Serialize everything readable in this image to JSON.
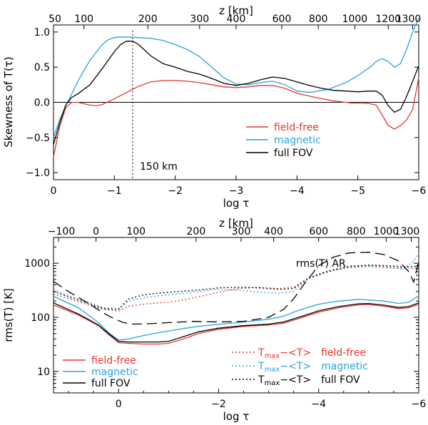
{
  "chart_data": [
    {
      "type": "line",
      "title": "",
      "xlabel": "log τ",
      "ylabel": "Skewness of T(τ)",
      "top_axis_label": "z [km]",
      "xlim": [
        0,
        -6
      ],
      "ylim": [
        -1.1,
        1.1
      ],
      "x_ticks": [
        "0",
        "−1",
        "−2",
        "−3",
        "−4",
        "−5",
        "−6"
      ],
      "x_tick_values": [
        0,
        -1,
        -2,
        -3,
        -4,
        -5,
        -6
      ],
      "y_ticks": [
        "−1.0",
        "−0.5",
        "0.0",
        "0.5",
        "1.0"
      ],
      "y_tick_values": [
        -1.0,
        -0.5,
        0.0,
        0.5,
        1.0
      ],
      "top_ticks": [
        "50",
        "100",
        "200",
        "300",
        "400",
        "600",
        "800",
        "1000",
        "1200",
        "1300"
      ],
      "top_tick_logtau": [
        0,
        -0.5,
        -1.55,
        -2.4,
        -3.0,
        -3.75,
        -4.35,
        -4.95,
        -5.5,
        -5.9
      ],
      "zero_line": 0,
      "vline": {
        "x": -1.3,
        "label": "150 km",
        "style": "dotted"
      },
      "series": [
        {
          "name": "field-free",
          "color": "#e8342e",
          "x": [
            0,
            -0.1,
            -0.2,
            -0.3,
            -0.4,
            -0.5,
            -0.6,
            -0.7,
            -0.8,
            -1.0,
            -1.2,
            -1.4,
            -1.6,
            -1.8,
            -2.0,
            -2.2,
            -2.4,
            -2.6,
            -2.8,
            -3.0,
            -3.2,
            -3.4,
            -3.6,
            -3.8,
            -4.0,
            -4.3,
            -4.6,
            -4.9,
            -5.1,
            -5.2,
            -5.3,
            -5.4,
            -5.5,
            -5.6,
            -5.7,
            -5.8,
            -5.9,
            -6.0
          ],
          "y": [
            -0.78,
            -0.35,
            -0.08,
            0.0,
            0.0,
            -0.02,
            -0.04,
            -0.05,
            -0.03,
            0.05,
            0.14,
            0.23,
            0.29,
            0.31,
            0.31,
            0.3,
            0.28,
            0.25,
            0.22,
            0.21,
            0.22,
            0.24,
            0.24,
            0.2,
            0.13,
            0.07,
            0.02,
            -0.01,
            -0.01,
            -0.02,
            -0.04,
            -0.18,
            -0.33,
            -0.38,
            -0.33,
            -0.25,
            -0.1,
            0.35
          ]
        },
        {
          "name": "magnetic",
          "color": "#2aa3de",
          "x": [
            0,
            -0.1,
            -0.2,
            -0.3,
            -0.4,
            -0.6,
            -0.8,
            -0.9,
            -1.0,
            -1.1,
            -1.2,
            -1.4,
            -1.6,
            -1.8,
            -2.0,
            -2.2,
            -2.4,
            -2.6,
            -2.8,
            -3.0,
            -3.2,
            -3.4,
            -3.6,
            -3.8,
            -4.0,
            -4.2,
            -4.5,
            -4.8,
            -5.0,
            -5.2,
            -5.3,
            -5.4,
            -5.5,
            -5.6,
            -5.7,
            -5.8,
            -5.9,
            -6.0
          ],
          "y": [
            -0.5,
            -0.25,
            -0.05,
            0.12,
            0.3,
            0.6,
            0.82,
            0.89,
            0.92,
            0.93,
            0.93,
            0.92,
            0.91,
            0.88,
            0.82,
            0.75,
            0.65,
            0.5,
            0.35,
            0.26,
            0.25,
            0.28,
            0.3,
            0.25,
            0.16,
            0.14,
            0.18,
            0.28,
            0.38,
            0.5,
            0.58,
            0.62,
            0.58,
            0.5,
            0.55,
            0.75,
            1.0,
            1.2
          ]
        },
        {
          "name": "full FOV",
          "color": "#000000",
          "x": [
            0,
            -0.1,
            -0.2,
            -0.3,
            -0.4,
            -0.6,
            -0.8,
            -1.0,
            -1.1,
            -1.2,
            -1.3,
            -1.4,
            -1.6,
            -1.8,
            -2.0,
            -2.2,
            -2.4,
            -2.6,
            -2.8,
            -3.0,
            -3.2,
            -3.4,
            -3.6,
            -3.8,
            -4.0,
            -4.2,
            -4.4,
            -4.6,
            -4.8,
            -5.0,
            -5.2,
            -5.3,
            -5.4,
            -5.5,
            -5.6,
            -5.7,
            -5.8,
            -5.9,
            -6.0
          ],
          "y": [
            -0.6,
            -0.3,
            -0.04,
            0.07,
            0.12,
            0.25,
            0.48,
            0.72,
            0.82,
            0.87,
            0.87,
            0.82,
            0.66,
            0.55,
            0.5,
            0.44,
            0.4,
            0.34,
            0.27,
            0.24,
            0.27,
            0.32,
            0.36,
            0.34,
            0.29,
            0.24,
            0.2,
            0.17,
            0.16,
            0.15,
            0.16,
            0.16,
            0.1,
            -0.05,
            -0.14,
            -0.1,
            0.08,
            0.3,
            0.52
          ]
        }
      ],
      "legend": {
        "placement": "right",
        "entries": [
          "field-free",
          "magnetic",
          "full FOV"
        ]
      }
    },
    {
      "type": "line",
      "title": "",
      "xlabel": "log τ",
      "ylabel": "rms(T) [K]",
      "top_axis_label": "z [km]",
      "xlim": [
        1.3,
        -6
      ],
      "ylim": [
        4,
        3000
      ],
      "y_scale": "log",
      "x_ticks": [
        "0",
        "−2",
        "−4",
        "−6"
      ],
      "x_tick_values": [
        0,
        -2,
        -4,
        -6
      ],
      "y_ticks": [
        "10",
        "100",
        "1000"
      ],
      "y_tick_values": [
        10,
        100,
        1000
      ],
      "top_ticks": [
        "−100",
        "0",
        "100",
        "200",
        "300",
        "400",
        "600",
        "800",
        "1000",
        "1300"
      ],
      "top_tick_logtau": [
        1.2,
        0.45,
        -0.35,
        -1.55,
        -2.45,
        -3.1,
        -4.0,
        -4.75,
        -5.35,
        -5.85
      ],
      "annotation": "rms(T) AR",
      "series": [
        {
          "name": "field-free",
          "color": "#e8342e",
          "style": "solid",
          "x": [
            1.3,
            0.8,
            0.4,
            0.2,
            0.0,
            -0.2,
            -0.5,
            -0.8,
            -1.0,
            -1.3,
            -1.6,
            -2.0,
            -2.5,
            -3.0,
            -3.3,
            -3.6,
            -4.0,
            -4.4,
            -4.8,
            -5.0,
            -5.3,
            -5.6,
            -5.8,
            -6.0
          ],
          "y": [
            170,
            110,
            70,
            48,
            34,
            33,
            32,
            32,
            33,
            40,
            50,
            60,
            68,
            72,
            78,
            95,
            125,
            150,
            170,
            172,
            160,
            145,
            150,
            175
          ]
        },
        {
          "name": "magnetic",
          "color": "#2aa3de",
          "style": "solid",
          "x": [
            1.3,
            0.8,
            0.4,
            0.2,
            0.0,
            -0.2,
            -0.5,
            -0.8,
            -1.0,
            -1.3,
            -1.6,
            -2.0,
            -2.5,
            -3.0,
            -3.3,
            -3.6,
            -4.0,
            -4.4,
            -4.8,
            -5.0,
            -5.3,
            -5.6,
            -5.8,
            -6.0
          ],
          "y": [
            245,
            150,
            80,
            52,
            38,
            40,
            46,
            52,
            56,
            62,
            68,
            74,
            82,
            92,
            105,
            135,
            175,
            200,
            215,
            210,
            200,
            180,
            190,
            250
          ]
        },
        {
          "name": "full FOV",
          "color": "#000000",
          "style": "solid",
          "x": [
            1.3,
            0.8,
            0.4,
            0.2,
            0.0,
            -0.2,
            -0.5,
            -0.8,
            -1.0,
            -1.3,
            -1.6,
            -2.0,
            -2.5,
            -3.0,
            -3.3,
            -3.6,
            -4.0,
            -4.4,
            -4.8,
            -5.0,
            -5.3,
            -5.6,
            -5.8,
            -6.0
          ],
          "y": [
            185,
            115,
            72,
            50,
            36,
            35,
            35,
            35,
            36,
            44,
            54,
            63,
            70,
            75,
            82,
            100,
            132,
            158,
            178,
            180,
            168,
            152,
            158,
            185
          ]
        },
        {
          "name": "Tmax−<T> field-free",
          "color": "#e8342e",
          "style": "dotted",
          "x": [
            1.3,
            1.0,
            0.6,
            0.3,
            0.0,
            -0.2,
            -0.5,
            -0.8,
            -1.0,
            -1.3,
            -1.6,
            -2.0,
            -2.4,
            -2.8,
            -3.2,
            -3.5,
            -3.8,
            -4.2,
            -4.6,
            -5.0,
            -5.4,
            -5.7,
            -6.0
          ],
          "y": [
            270,
            220,
            170,
            140,
            130,
            160,
            175,
            185,
            190,
            210,
            240,
            290,
            340,
            360,
            340,
            360,
            530,
            700,
            850,
            900,
            850,
            820,
            800
          ]
        },
        {
          "name": "Tmax−<T> magnetic",
          "color": "#2aa3de",
          "style": "dotted",
          "x": [
            1.3,
            1.0,
            0.6,
            0.3,
            0.0,
            -0.2,
            -0.5,
            -0.8,
            -1.0,
            -1.3,
            -1.6,
            -2.0,
            -2.4,
            -2.8,
            -3.2,
            -3.5,
            -3.8,
            -4.2,
            -4.6,
            -5.0,
            -5.4,
            -5.7,
            -5.9,
            -6.0
          ],
          "y": [
            330,
            250,
            190,
            150,
            145,
            200,
            230,
            250,
            260,
            280,
            300,
            330,
            320,
            290,
            280,
            300,
            520,
            700,
            830,
            870,
            820,
            780,
            1100,
            1500
          ]
        },
        {
          "name": "Tmax−<T> full FOV",
          "color": "#000000",
          "style": "dotted",
          "x": [
            1.3,
            1.0,
            0.6,
            0.3,
            0.0,
            -0.2,
            -0.5,
            -0.8,
            -1.0,
            -1.3,
            -1.6,
            -2.0,
            -2.4,
            -2.8,
            -3.2,
            -3.5,
            -3.8,
            -4.2,
            -4.6,
            -5.0,
            -5.4,
            -5.7,
            -6.0
          ],
          "y": [
            300,
            240,
            180,
            145,
            140,
            220,
            260,
            280,
            290,
            305,
            320,
            350,
            360,
            350,
            330,
            340,
            540,
            720,
            880,
            920,
            900,
            860,
            880
          ]
        },
        {
          "name": "rms(T) AR",
          "color": "#000000",
          "style": "dashed",
          "x": [
            1.3,
            1.0,
            0.6,
            0.3,
            0.1,
            -0.1,
            -0.3,
            -0.6,
            -1.0,
            -1.5,
            -2.0,
            -2.5,
            -3.0,
            -3.3,
            -3.5,
            -3.7,
            -4.0,
            -4.3,
            -4.6,
            -5.0,
            -5.3,
            -5.6,
            -5.8,
            -5.9,
            -6.0
          ],
          "y": [
            460,
            300,
            180,
            120,
            95,
            80,
            75,
            76,
            80,
            84,
            82,
            84,
            100,
            140,
            220,
            400,
            900,
            1300,
            1550,
            1600,
            1450,
            1100,
            700,
            450,
            1100
          ]
        }
      ],
      "legend_left": {
        "placement": "bottom-left",
        "entries": [
          "field-free",
          "magnetic",
          "full FOV"
        ]
      },
      "legend_right": {
        "placement": "bottom-right",
        "base": "T",
        "sub": "max",
        "rest": "−<T>",
        "entries": [
          {
            "series": "field-free",
            "color": "#e8342e"
          },
          {
            "series": "magnetic",
            "color": "#2aa3de"
          },
          {
            "series": "full FOV",
            "color": "#000000"
          }
        ]
      }
    }
  ]
}
